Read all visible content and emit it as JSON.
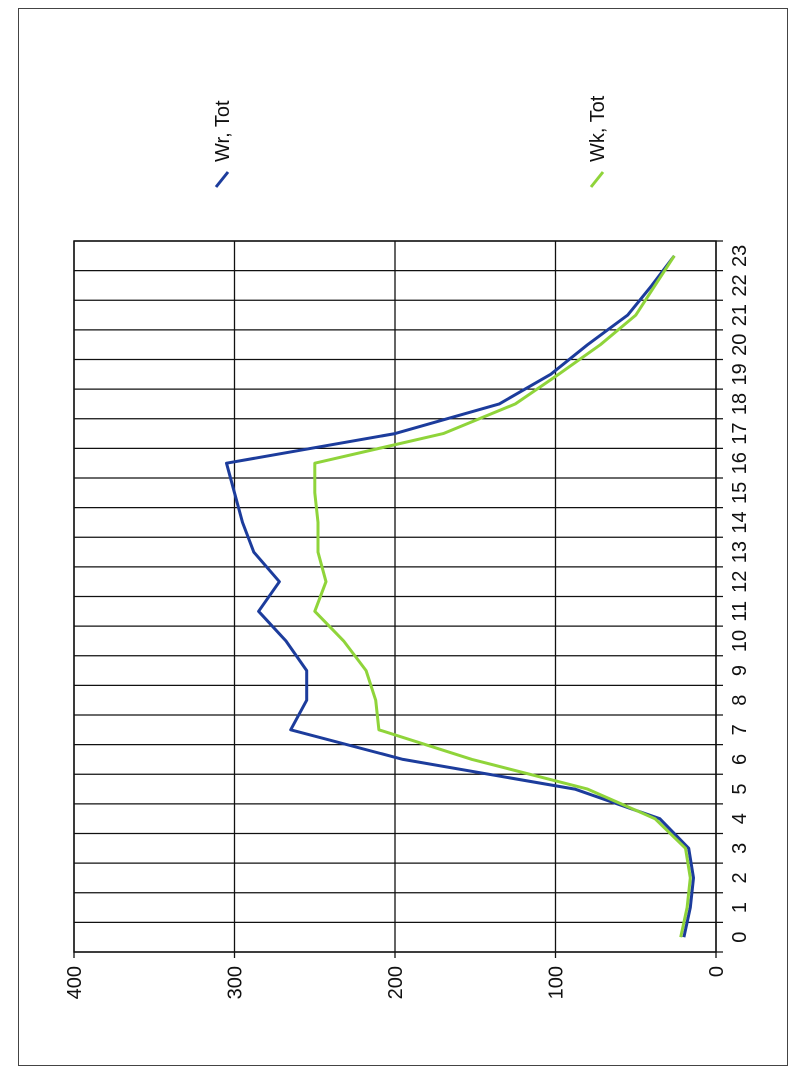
{
  "chart_data": {
    "type": "line",
    "orientation": "rotated-90-clockwise",
    "title": "",
    "xlabel": "",
    "ylabel": "",
    "x": [
      0,
      1,
      2,
      3,
      4,
      5,
      6,
      7,
      8,
      9,
      10,
      11,
      12,
      13,
      14,
      15,
      16,
      17,
      18,
      19,
      20,
      21,
      22,
      23
    ],
    "ylim": [
      0,
      400
    ],
    "yticks": [
      0,
      100,
      200,
      300,
      400
    ],
    "grid": true,
    "legend_position": "top-right",
    "series": [
      {
        "name": "Wr, Tot",
        "color": "#1c3c9c",
        "values": [
          20,
          16,
          14,
          17,
          35,
          88,
          195,
          265,
          255,
          255,
          268,
          285,
          272,
          288,
          295,
          300,
          305,
          200,
          135,
          103,
          80,
          55,
          40,
          26
        ]
      },
      {
        "name": "Wk, Tot",
        "color": "#8fd43a",
        "values": [
          22,
          18,
          16,
          19,
          38,
          80,
          152,
          210,
          212,
          218,
          232,
          250,
          243,
          248,
          248,
          250,
          250,
          170,
          125,
          98,
          72,
          50,
          38,
          26
        ]
      }
    ]
  }
}
